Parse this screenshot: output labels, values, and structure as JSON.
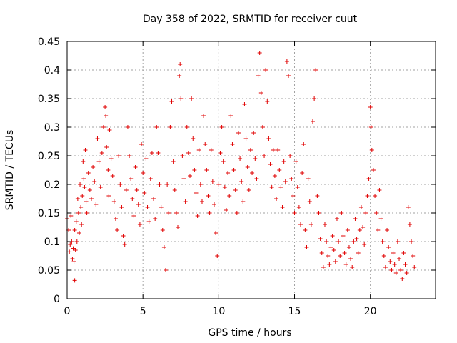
{
  "chart_data": {
    "type": "scatter",
    "title": "Day 358 of 2022, SRMTID for receiver cuut",
    "xlabel": "GPS time / hours",
    "ylabel": "SRMTID / TECUs",
    "xlim": [
      0,
      24.3
    ],
    "ylim": [
      0,
      0.45
    ],
    "xticks": [
      "0",
      "5",
      "10",
      "15",
      "20"
    ],
    "yticks": [
      "0",
      "0.05",
      "0.1",
      "0.15",
      "0.2",
      "0.25",
      "0.3",
      "0.35",
      "0.4",
      "0.45"
    ],
    "grid": true,
    "marker": "+",
    "series_color": "#e00000",
    "series": [
      {
        "points": [
          [
            0.0,
            0.14
          ],
          [
            0.1,
            0.12
          ],
          [
            0.15,
            0.082
          ],
          [
            0.2,
            0.095
          ],
          [
            0.25,
            0.145
          ],
          [
            0.3,
            0.1
          ],
          [
            0.35,
            0.07
          ],
          [
            0.4,
            0.088
          ],
          [
            0.45,
            0.065
          ],
          [
            0.5,
            0.032
          ],
          [
            0.5,
            0.12
          ],
          [
            0.55,
            0.085
          ],
          [
            0.6,
            0.135
          ],
          [
            0.65,
            0.1
          ],
          [
            0.7,
            0.175
          ],
          [
            0.75,
            0.15
          ],
          [
            0.8,
            0.115
          ],
          [
            0.85,
            0.2
          ],
          [
            0.9,
            0.16
          ],
          [
            0.95,
            0.13
          ],
          [
            1.0,
            0.18
          ],
          [
            1.05,
            0.24
          ],
          [
            1.1,
            0.21
          ],
          [
            1.15,
            0.195
          ],
          [
            1.2,
            0.26
          ],
          [
            1.25,
            0.17
          ],
          [
            1.3,
            0.15
          ],
          [
            1.4,
            0.22
          ],
          [
            1.5,
            0.19
          ],
          [
            1.6,
            0.175
          ],
          [
            1.7,
            0.23
          ],
          [
            1.8,
            0.205
          ],
          [
            1.9,
            0.165
          ],
          [
            2.0,
            0.28
          ],
          [
            2.1,
            0.24
          ],
          [
            2.2,
            0.195
          ],
          [
            2.3,
            0.255
          ],
          [
            2.4,
            0.3
          ],
          [
            2.5,
            0.335
          ],
          [
            2.55,
            0.32
          ],
          [
            2.6,
            0.265
          ],
          [
            2.7,
            0.225
          ],
          [
            2.75,
            0.18
          ],
          [
            2.8,
            0.295
          ],
          [
            2.9,
            0.245
          ],
          [
            3.0,
            0.215
          ],
          [
            3.1,
            0.17
          ],
          [
            3.2,
            0.14
          ],
          [
            3.3,
            0.12
          ],
          [
            3.4,
            0.25
          ],
          [
            3.5,
            0.2
          ],
          [
            3.6,
            0.16
          ],
          [
            3.7,
            0.11
          ],
          [
            3.8,
            0.095
          ],
          [
            3.9,
            0.19
          ],
          [
            4.0,
            0.3
          ],
          [
            4.1,
            0.25
          ],
          [
            4.2,
            0.21
          ],
          [
            4.3,
            0.175
          ],
          [
            4.4,
            0.145
          ],
          [
            4.5,
            0.23
          ],
          [
            4.6,
            0.19
          ],
          [
            4.7,
            0.165
          ],
          [
            4.8,
            0.13
          ],
          [
            4.9,
            0.27
          ],
          [
            5.0,
            0.22
          ],
          [
            5.1,
            0.185
          ],
          [
            5.2,
            0.245
          ],
          [
            5.3,
            0.16
          ],
          [
            5.4,
            0.135
          ],
          [
            5.5,
            0.21
          ],
          [
            5.6,
            0.255
          ],
          [
            5.7,
            0.175
          ],
          [
            5.8,
            0.14
          ],
          [
            5.9,
            0.3
          ],
          [
            6.0,
            0.255
          ],
          [
            6.1,
            0.2
          ],
          [
            6.2,
            0.16
          ],
          [
            6.3,
            0.12
          ],
          [
            6.4,
            0.09
          ],
          [
            6.5,
            0.05
          ],
          [
            6.6,
            0.2
          ],
          [
            6.7,
            0.15
          ],
          [
            6.8,
            0.3
          ],
          [
            6.9,
            0.345
          ],
          [
            7.0,
            0.24
          ],
          [
            7.1,
            0.19
          ],
          [
            7.2,
            0.15
          ],
          [
            7.3,
            0.125
          ],
          [
            7.4,
            0.39
          ],
          [
            7.45,
            0.41
          ],
          [
            7.5,
            0.35
          ],
          [
            7.6,
            0.25
          ],
          [
            7.7,
            0.21
          ],
          [
            7.8,
            0.17
          ],
          [
            7.9,
            0.3
          ],
          [
            8.0,
            0.255
          ],
          [
            8.1,
            0.215
          ],
          [
            8.2,
            0.35
          ],
          [
            8.3,
            0.28
          ],
          [
            8.4,
            0.225
          ],
          [
            8.5,
            0.185
          ],
          [
            8.6,
            0.145
          ],
          [
            8.7,
            0.26
          ],
          [
            8.8,
            0.2
          ],
          [
            8.9,
            0.17
          ],
          [
            9.0,
            0.32
          ],
          [
            9.1,
            0.27
          ],
          [
            9.2,
            0.225
          ],
          [
            9.3,
            0.18
          ],
          [
            9.4,
            0.15
          ],
          [
            9.5,
            0.26
          ],
          [
            9.6,
            0.205
          ],
          [
            9.7,
            0.165
          ],
          [
            9.8,
            0.115
          ],
          [
            9.9,
            0.075
          ],
          [
            10.0,
            0.2
          ],
          [
            10.1,
            0.255
          ],
          [
            10.2,
            0.3
          ],
          [
            10.3,
            0.24
          ],
          [
            10.4,
            0.195
          ],
          [
            10.5,
            0.155
          ],
          [
            10.6,
            0.22
          ],
          [
            10.7,
            0.18
          ],
          [
            10.8,
            0.32
          ],
          [
            10.9,
            0.27
          ],
          [
            11.0,
            0.225
          ],
          [
            11.1,
            0.19
          ],
          [
            11.2,
            0.15
          ],
          [
            11.3,
            0.29
          ],
          [
            11.4,
            0.245
          ],
          [
            11.5,
            0.205
          ],
          [
            11.6,
            0.17
          ],
          [
            11.7,
            0.34
          ],
          [
            11.8,
            0.28
          ],
          [
            11.9,
            0.23
          ],
          [
            12.0,
            0.19
          ],
          [
            12.1,
            0.26
          ],
          [
            12.2,
            0.22
          ],
          [
            12.3,
            0.29
          ],
          [
            12.4,
            0.245
          ],
          [
            12.5,
            0.21
          ],
          [
            12.6,
            0.39
          ],
          [
            12.7,
            0.43
          ],
          [
            12.8,
            0.36
          ],
          [
            12.9,
            0.3
          ],
          [
            13.0,
            0.25
          ],
          [
            13.1,
            0.4
          ],
          [
            13.2,
            0.345
          ],
          [
            13.3,
            0.28
          ],
          [
            13.4,
            0.235
          ],
          [
            13.5,
            0.195
          ],
          [
            13.6,
            0.26
          ],
          [
            13.7,
            0.215
          ],
          [
            13.8,
            0.175
          ],
          [
            13.9,
            0.26
          ],
          [
            14.0,
            0.225
          ],
          [
            14.1,
            0.195
          ],
          [
            14.2,
            0.16
          ],
          [
            14.3,
            0.24
          ],
          [
            14.4,
            0.205
          ],
          [
            14.5,
            0.415
          ],
          [
            14.6,
            0.39
          ],
          [
            14.7,
            0.25
          ],
          [
            14.8,
            0.21
          ],
          [
            14.9,
            0.18
          ],
          [
            15.0,
            0.15
          ],
          [
            15.1,
            0.24
          ],
          [
            15.2,
            0.195
          ],
          [
            15.3,
            0.16
          ],
          [
            15.4,
            0.13
          ],
          [
            15.5,
            0.22
          ],
          [
            15.6,
            0.27
          ],
          [
            15.7,
            0.12
          ],
          [
            15.8,
            0.09
          ],
          [
            15.9,
            0.21
          ],
          [
            16.0,
            0.17
          ],
          [
            16.1,
            0.13
          ],
          [
            16.2,
            0.31
          ],
          [
            16.3,
            0.35
          ],
          [
            16.4,
            0.4
          ],
          [
            16.5,
            0.18
          ],
          [
            16.6,
            0.15
          ],
          [
            16.7,
            0.105
          ],
          [
            16.8,
            0.08
          ],
          [
            16.9,
            0.055
          ],
          [
            17.0,
            0.13
          ],
          [
            17.1,
            0.1
          ],
          [
            17.2,
            0.075
          ],
          [
            17.3,
            0.06
          ],
          [
            17.4,
            0.09
          ],
          [
            17.5,
            0.11
          ],
          [
            17.6,
            0.085
          ],
          [
            17.7,
            0.065
          ],
          [
            17.8,
            0.14
          ],
          [
            17.9,
            0.1
          ],
          [
            18.0,
            0.075
          ],
          [
            18.1,
            0.15
          ],
          [
            18.2,
            0.11
          ],
          [
            18.3,
            0.08
          ],
          [
            18.4,
            0.06
          ],
          [
            18.5,
            0.12
          ],
          [
            18.6,
            0.09
          ],
          [
            18.7,
            0.07
          ],
          [
            18.8,
            0.055
          ],
          [
            18.9,
            0.1
          ],
          [
            19.0,
            0.14
          ],
          [
            19.1,
            0.105
          ],
          [
            19.2,
            0.08
          ],
          [
            19.3,
            0.12
          ],
          [
            19.4,
            0.16
          ],
          [
            19.5,
            0.125
          ],
          [
            19.6,
            0.095
          ],
          [
            19.7,
            0.15
          ],
          [
            19.8,
            0.18
          ],
          [
            19.9,
            0.21
          ],
          [
            20.0,
            0.335
          ],
          [
            20.05,
            0.3
          ],
          [
            20.1,
            0.26
          ],
          [
            20.2,
            0.225
          ],
          [
            20.3,
            0.18
          ],
          [
            20.4,
            0.15
          ],
          [
            20.5,
            0.12
          ],
          [
            20.6,
            0.19
          ],
          [
            20.7,
            0.14
          ],
          [
            20.8,
            0.1
          ],
          [
            20.9,
            0.075
          ],
          [
            21.0,
            0.055
          ],
          [
            21.1,
            0.12
          ],
          [
            21.2,
            0.09
          ],
          [
            21.3,
            0.065
          ],
          [
            21.4,
            0.05
          ],
          [
            21.5,
            0.08
          ],
          [
            21.6,
            0.06
          ],
          [
            21.7,
            0.045
          ],
          [
            21.8,
            0.1
          ],
          [
            21.9,
            0.07
          ],
          [
            22.0,
            0.05
          ],
          [
            22.1,
            0.035
          ],
          [
            22.2,
            0.08
          ],
          [
            22.3,
            0.06
          ],
          [
            22.4,
            0.045
          ],
          [
            22.5,
            0.16
          ],
          [
            22.6,
            0.13
          ],
          [
            22.7,
            0.1
          ],
          [
            22.8,
            0.075
          ],
          [
            22.9,
            0.055
          ]
        ]
      }
    ]
  }
}
